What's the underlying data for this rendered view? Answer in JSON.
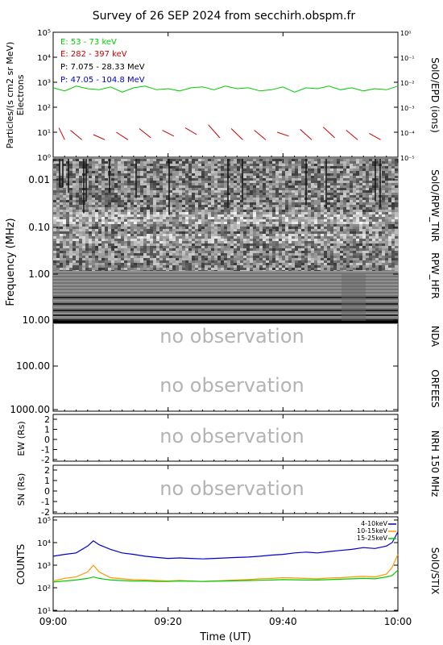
{
  "title": "Survey of 26 SEP 2024 from secchirh.obspm.fr",
  "epd": {
    "ylabel_left": "Particles/(s cm2 sr MeV)",
    "ylabel_left2": "Electrons",
    "ylabel_right": "SolO/EPD (ions)",
    "left_ticks": [
      "10⁰",
      "10¹",
      "10²",
      "10³",
      "10⁴",
      "10⁵"
    ],
    "right_ticks": [
      "10⁻⁵",
      "10⁻⁴",
      "10⁻³",
      "10⁻²",
      "10⁻¹",
      "10⁰"
    ],
    "legend": [
      {
        "label": "E: 53 - 73 keV",
        "color": "#00cc00"
      },
      {
        "label": "E: 282 - 397 keV",
        "color": "#cc0000"
      },
      {
        "label": "P: 7.075 - 28.33 MeV",
        "color": "#000000"
      },
      {
        "label": "P: 47.05 - 104.8 MeV",
        "color": "#0000cc"
      }
    ]
  },
  "radio": {
    "ylabel": "Frequency (MHz)",
    "ticks": [
      "0.01",
      "0.10",
      "1.00",
      "10.00",
      "100.00",
      "1000.00"
    ],
    "labels": [
      "SolO/RPW_TNR",
      "RPW_HFR",
      "NDA",
      "ORFEES"
    ],
    "no_obs": "no observation"
  },
  "nrh": {
    "label": "NRH 150 MHz",
    "ew_label": "EW (Rs)",
    "sn_label": "SN (Rs)",
    "ticks": [
      "2",
      "1",
      "0",
      "-1",
      "-2"
    ],
    "no_obs": "no observation"
  },
  "stix": {
    "ylabel": "COUNTS",
    "label_right": "SolO/STIX",
    "ticks": [
      "10¹",
      "10²",
      "10³",
      "10⁴",
      "10⁵"
    ],
    "legend": [
      {
        "label": "4-10keV",
        "color": "#0000cc"
      },
      {
        "label": "10-15keV",
        "color": "#ff9900"
      },
      {
        "label": "15-25keV",
        "color": "#00cc00"
      }
    ]
  },
  "xaxis": {
    "label": "Time (UT)",
    "ticks": [
      "09:00",
      "09:20",
      "09:40",
      "10:00"
    ]
  },
  "chart_data": [
    {
      "type": "line",
      "name": "SolO/EPD",
      "x_range": [
        "09:00",
        "10:00"
      ],
      "yscale": "log",
      "ylim": [
        1,
        100000
      ],
      "series": [
        {
          "name": "E: 53 - 73 keV",
          "color": "#00cc00",
          "x": [
            0,
            2,
            4,
            6,
            8,
            10,
            12,
            14,
            16,
            18,
            20,
            22,
            24,
            26,
            28,
            30,
            32,
            34,
            36,
            38,
            40,
            42,
            44,
            46,
            48,
            50,
            52,
            54,
            56,
            58,
            60
          ],
          "y": [
            600,
            450,
            700,
            550,
            500,
            650,
            400,
            600,
            700,
            500,
            550,
            450,
            600,
            650,
            500,
            700,
            550,
            600,
            450,
            500,
            650,
            400,
            600,
            550,
            700,
            500,
            600,
            450,
            550,
            500,
            700
          ]
        },
        {
          "name": "E: 282 - 397 keV",
          "color": "#cc0000",
          "x": [
            1,
            2,
            3,
            5,
            7,
            9,
            11,
            13,
            15,
            17,
            19,
            21,
            23,
            25,
            27,
            29,
            31,
            33,
            35,
            37,
            39,
            41,
            43,
            45,
            47,
            49,
            51,
            53,
            55,
            57,
            59
          ],
          "y": [
            15,
            5,
            12,
            5,
            8,
            5,
            10,
            5,
            14,
            6,
            12,
            7,
            15,
            8,
            20,
            6,
            14,
            5,
            12,
            5,
            10,
            7,
            13,
            5,
            16,
            6,
            12,
            5,
            9,
            5,
            8
          ]
        }
      ]
    },
    {
      "type": "heatmap",
      "name": "Radio dynamic spectrum",
      "x_range": [
        "09:00",
        "10:00"
      ],
      "y_range_MHz": [
        0.005,
        10
      ]
    },
    {
      "type": "line",
      "name": "SolO/STIX",
      "x_range": [
        "09:00",
        "10:00"
      ],
      "yscale": "log",
      "ylim": [
        10,
        100000
      ],
      "series": [
        {
          "name": "4-10keV",
          "color": "#0000cc",
          "x": [
            0,
            2,
            4,
            6,
            7,
            8,
            10,
            12,
            14,
            16,
            18,
            20,
            22,
            24,
            26,
            28,
            30,
            32,
            34,
            36,
            38,
            40,
            42,
            44,
            46,
            48,
            50,
            52,
            54,
            56,
            58,
            59,
            60
          ],
          "y": [
            2500,
            3000,
            3500,
            7000,
            12000,
            8000,
            5000,
            3500,
            3000,
            2500,
            2200,
            2000,
            2100,
            2000,
            1900,
            2000,
            2100,
            2200,
            2300,
            2500,
            2800,
            3000,
            3500,
            3800,
            3500,
            4000,
            4500,
            5000,
            6000,
            5500,
            7000,
            10000,
            30000
          ]
        },
        {
          "name": "10-15keV",
          "color": "#ff9900",
          "x": [
            0,
            2,
            4,
            6,
            7,
            8,
            10,
            12,
            14,
            16,
            18,
            20,
            22,
            24,
            26,
            28,
            30,
            32,
            34,
            36,
            38,
            40,
            42,
            44,
            46,
            48,
            50,
            52,
            54,
            56,
            58,
            59,
            60
          ],
          "y": [
            200,
            260,
            300,
            500,
            1000,
            500,
            280,
            250,
            230,
            220,
            210,
            200,
            210,
            200,
            190,
            200,
            210,
            220,
            230,
            250,
            260,
            280,
            270,
            260,
            250,
            270,
            280,
            300,
            320,
            300,
            400,
            800,
            3000
          ]
        },
        {
          "name": "15-25keV",
          "color": "#00cc00",
          "x": [
            0,
            2,
            4,
            6,
            7,
            8,
            10,
            12,
            14,
            16,
            18,
            20,
            22,
            24,
            26,
            28,
            30,
            32,
            34,
            36,
            38,
            40,
            42,
            44,
            46,
            48,
            50,
            52,
            54,
            56,
            58,
            59,
            60
          ],
          "y": [
            180,
            200,
            220,
            260,
            300,
            260,
            220,
            210,
            200,
            200,
            190,
            190,
            200,
            195,
            190,
            195,
            200,
            205,
            210,
            215,
            220,
            230,
            225,
            220,
            220,
            230,
            240,
            250,
            260,
            250,
            300,
            350,
            600
          ]
        }
      ]
    }
  ]
}
